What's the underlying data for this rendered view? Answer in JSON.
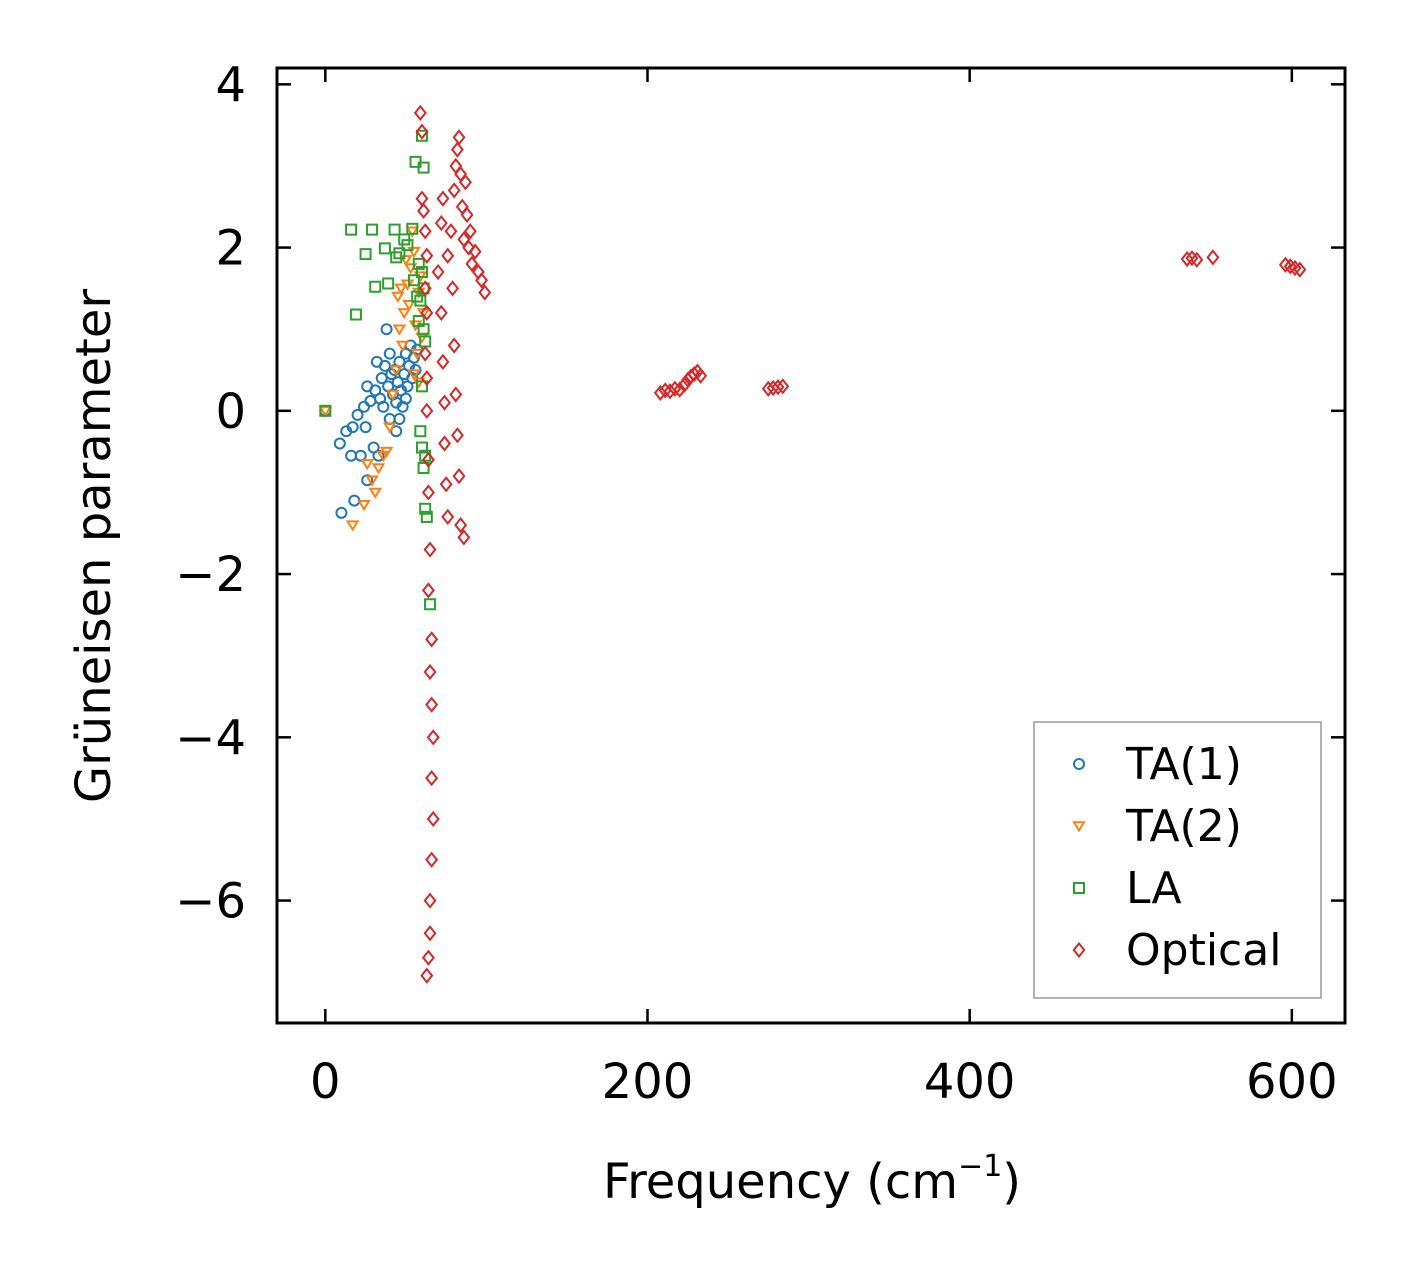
{
  "chart_data": {
    "type": "scatter",
    "title": "",
    "xlabel": "Frequency (cm",
    "xlabel_sup": "−1",
    "xlabel_close": ")",
    "ylabel": "Grüneisen parameter",
    "xlim": [
      -30,
      633
    ],
    "ylim": [
      -7.5,
      4.2
    ],
    "xticks": [
      0,
      200,
      400,
      600
    ],
    "xtick_labels": [
      "0",
      "200",
      "400",
      "600"
    ],
    "yticks": [
      -6,
      -4,
      -2,
      0,
      2,
      4
    ],
    "ytick_labels": [
      "−6",
      "−4",
      "−2",
      "0",
      "2",
      "4"
    ],
    "legend_position": "lower-right",
    "series": [
      {
        "name": "TA(1)",
        "marker": "circle",
        "color": "#1f77b4",
        "points": [
          [
            0,
            0
          ],
          [
            9,
            -0.4
          ],
          [
            10,
            -1.25
          ],
          [
            13,
            -0.25
          ],
          [
            16,
            -0.55
          ],
          [
            17,
            -0.2
          ],
          [
            18,
            -1.1
          ],
          [
            20,
            -0.05
          ],
          [
            22,
            -0.55
          ],
          [
            24,
            0.05
          ],
          [
            25,
            -0.2
          ],
          [
            26,
            -0.85
          ],
          [
            26,
            0.3
          ],
          [
            28,
            0.12
          ],
          [
            30,
            -0.45
          ],
          [
            31,
            0.25
          ],
          [
            32,
            0.6
          ],
          [
            33,
            -0.55
          ],
          [
            34,
            0.15
          ],
          [
            35,
            0.4
          ],
          [
            36,
            0.05
          ],
          [
            37,
            0.55
          ],
          [
            38,
            1.0
          ],
          [
            39,
            0.3
          ],
          [
            40,
            0.7
          ],
          [
            40,
            -0.1
          ],
          [
            41,
            0.45
          ],
          [
            42,
            0.2
          ],
          [
            43,
            0.5
          ],
          [
            44,
            0.1
          ],
          [
            44,
            -0.25
          ],
          [
            45,
            0.35
          ],
          [
            46,
            0.6
          ],
          [
            47,
            0.25
          ],
          [
            48,
            0.05
          ],
          [
            49,
            0.45
          ],
          [
            50,
            0.7
          ],
          [
            51,
            0.3
          ],
          [
            52,
            0.55
          ],
          [
            53,
            0.8
          ],
          [
            54,
            0.4
          ],
          [
            55,
            0.65
          ],
          [
            56,
            0.5
          ],
          [
            57,
            0.75
          ],
          [
            46,
            -0.1
          ],
          [
            50,
            0.15
          ]
        ]
      },
      {
        "name": "TA(2)",
        "marker": "triangle_down",
        "color": "#ff7f0e",
        "points": [
          [
            0,
            0
          ],
          [
            17,
            -1.4
          ],
          [
            24,
            -1.15
          ],
          [
            26,
            -0.65
          ],
          [
            29,
            -0.85
          ],
          [
            31,
            -1.0
          ],
          [
            33,
            -0.7
          ],
          [
            36,
            -0.55
          ],
          [
            38,
            -0.5
          ],
          [
            40,
            -0.2
          ],
          [
            42,
            0.2
          ],
          [
            44,
            0.5
          ],
          [
            45,
            1.4
          ],
          [
            46,
            1.0
          ],
          [
            47,
            1.5
          ],
          [
            48,
            0.8
          ],
          [
            49,
            1.2
          ],
          [
            50,
            1.85
          ],
          [
            51,
            1.55
          ],
          [
            52,
            1.3
          ],
          [
            53,
            1.75
          ],
          [
            54,
            2.2
          ],
          [
            55,
            1.95
          ],
          [
            56,
            1.05
          ],
          [
            57,
            0.7
          ],
          [
            58,
            1.45
          ],
          [
            59,
            1.65
          ],
          [
            60,
            0.9
          ],
          [
            61,
            1.2
          ],
          [
            55,
            0.45
          ],
          [
            58,
            0.35
          ]
        ]
      },
      {
        "name": "LA",
        "marker": "square",
        "color": "#2ca02c",
        "points": [
          [
            0,
            0
          ],
          [
            16,
            2.22
          ],
          [
            19,
            1.18
          ],
          [
            25,
            1.92
          ],
          [
            29,
            2.22
          ],
          [
            31,
            1.52
          ],
          [
            37,
            1.99
          ],
          [
            39,
            1.56
          ],
          [
            43,
            2.22
          ],
          [
            44,
            1.88
          ],
          [
            46,
            1.93
          ],
          [
            49,
            2.1
          ],
          [
            51,
            2.03
          ],
          [
            54,
            2.23
          ],
          [
            55,
            1.6
          ],
          [
            56,
            3.05
          ],
          [
            58,
            1.8
          ],
          [
            59,
            1.35
          ],
          [
            60,
            3.37
          ],
          [
            61,
            2.98
          ],
          [
            61,
            1.0
          ],
          [
            62,
            0.85
          ],
          [
            60,
            0.3
          ],
          [
            59,
            -0.25
          ],
          [
            60,
            -0.45
          ],
          [
            61,
            -0.7
          ],
          [
            62,
            -0.55
          ],
          [
            62,
            -1.2
          ],
          [
            63,
            -1.3
          ],
          [
            65,
            -2.37
          ],
          [
            57,
            1.4
          ],
          [
            58,
            1.1
          ],
          [
            60,
            1.7
          ],
          [
            61,
            1.5
          ]
        ]
      },
      {
        "name": "Optical",
        "marker": "diamond",
        "color": "#d62728",
        "points": [
          [
            59,
            3.65
          ],
          [
            60,
            3.42
          ],
          [
            60,
            2.6
          ],
          [
            61,
            2.45
          ],
          [
            62,
            2.2
          ],
          [
            63,
            1.9
          ],
          [
            62,
            1.5
          ],
          [
            63,
            1.2
          ],
          [
            62,
            0.7
          ],
          [
            63,
            0.4
          ],
          [
            63,
            0.0
          ],
          [
            64,
            -0.6
          ],
          [
            64,
            -1.0
          ],
          [
            65,
            -1.7
          ],
          [
            64,
            -2.2
          ],
          [
            66,
            -2.8
          ],
          [
            65,
            -3.2
          ],
          [
            66,
            -3.6
          ],
          [
            67,
            -4.0
          ],
          [
            66,
            -4.5
          ],
          [
            67,
            -5.0
          ],
          [
            66,
            -5.5
          ],
          [
            65,
            -6.0
          ],
          [
            65,
            -6.4
          ],
          [
            64,
            -6.7
          ],
          [
            63,
            -6.92
          ],
          [
            70,
            1.7
          ],
          [
            72,
            1.2
          ],
          [
            73,
            0.6
          ],
          [
            74,
            0.1
          ],
          [
            74,
            -0.4
          ],
          [
            75,
            -0.9
          ],
          [
            76,
            -1.3
          ],
          [
            72,
            2.3
          ],
          [
            73,
            2.6
          ],
          [
            76,
            1.9
          ],
          [
            78,
            2.2
          ],
          [
            79,
            1.5
          ],
          [
            80,
            0.8
          ],
          [
            81,
            0.2
          ],
          [
            82,
            -0.3
          ],
          [
            83,
            -0.8
          ],
          [
            84,
            -1.4
          ],
          [
            86,
            -1.55
          ],
          [
            80,
            2.7
          ],
          [
            81,
            3.0
          ],
          [
            82,
            3.2
          ],
          [
            83,
            3.35
          ],
          [
            84,
            2.9
          ],
          [
            85,
            2.5
          ],
          [
            86,
            2.1
          ],
          [
            87,
            2.8
          ],
          [
            88,
            2.4
          ],
          [
            89,
            2.0
          ],
          [
            90,
            2.2
          ],
          [
            91,
            1.8
          ],
          [
            93,
            1.95
          ],
          [
            95,
            1.7
          ],
          [
            97,
            1.6
          ],
          [
            99,
            1.45
          ],
          [
            208,
            0.22
          ],
          [
            211,
            0.25
          ],
          [
            214,
            0.24
          ],
          [
            217,
            0.27
          ],
          [
            220,
            0.26
          ],
          [
            223,
            0.32
          ],
          [
            225,
            0.38
          ],
          [
            227,
            0.42
          ],
          [
            229,
            0.45
          ],
          [
            231,
            0.48
          ],
          [
            233,
            0.43
          ],
          [
            275,
            0.27
          ],
          [
            278,
            0.28
          ],
          [
            281,
            0.29
          ],
          [
            284,
            0.3
          ],
          [
            535,
            1.86
          ],
          [
            538,
            1.87
          ],
          [
            541,
            1.85
          ],
          [
            551,
            1.88
          ],
          [
            596,
            1.79
          ],
          [
            599,
            1.77
          ],
          [
            602,
            1.75
          ],
          [
            605,
            1.73
          ]
        ]
      }
    ]
  }
}
